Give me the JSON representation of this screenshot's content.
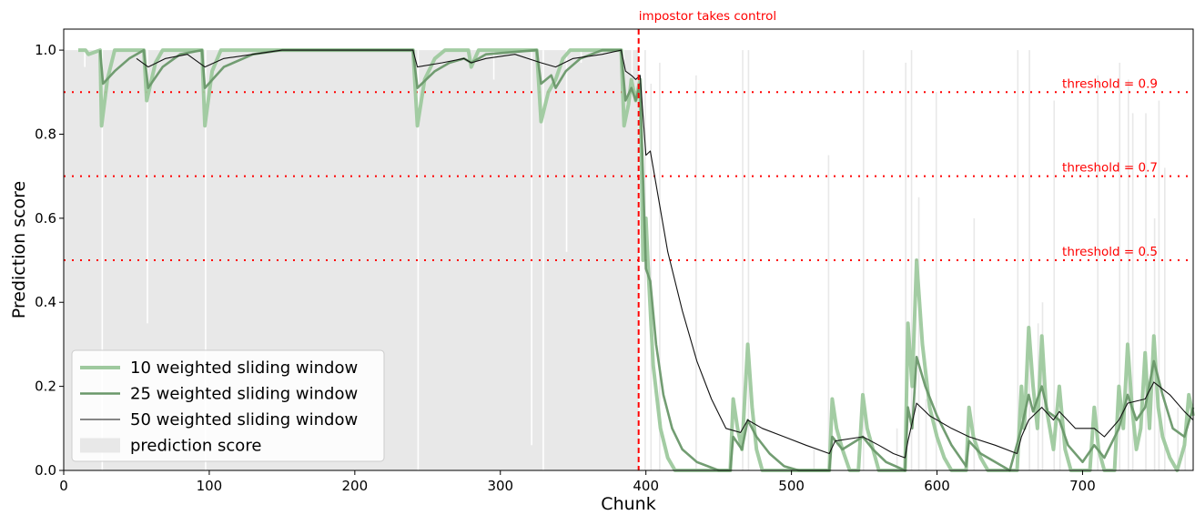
{
  "chart_data": {
    "type": "line",
    "title": "",
    "xlabel": "Chunk",
    "ylabel": "Prediction score",
    "xlim": [
      0,
      776
    ],
    "ylim": [
      0,
      1.05
    ],
    "xticks": [
      0,
      100,
      200,
      300,
      400,
      500,
      600,
      700
    ],
    "yticks": [
      "0.0",
      "0.2",
      "0.4",
      "0.6",
      "0.8",
      "1.0"
    ],
    "grid": false,
    "legend_position": "lower-left",
    "annotations": {
      "impostor_x": 395,
      "impostor_label": "impostor takes control",
      "thresholds": [
        {
          "value": 0.9,
          "label": "threshold = 0.9"
        },
        {
          "value": 0.7,
          "label": "threshold = 0.7"
        },
        {
          "value": 0.5,
          "label": "threshold = 0.5"
        }
      ]
    },
    "series": [
      {
        "name": "10 weighted sliding window",
        "color": "#9ec99e",
        "points": [
          [
            10,
            1.0
          ],
          [
            15,
            1.0
          ],
          [
            17,
            0.99
          ],
          [
            25,
            1.0
          ],
          [
            26,
            0.82
          ],
          [
            30,
            0.93
          ],
          [
            35,
            1.0
          ],
          [
            55,
            1.0
          ],
          [
            57,
            0.88
          ],
          [
            63,
            0.97
          ],
          [
            68,
            1.0
          ],
          [
            95,
            1.0
          ],
          [
            97,
            0.82
          ],
          [
            102,
            0.95
          ],
          [
            108,
            1.0
          ],
          [
            240,
            1.0
          ],
          [
            243,
            0.82
          ],
          [
            248,
            0.93
          ],
          [
            255,
            0.98
          ],
          [
            262,
            1.0
          ],
          [
            278,
            1.0
          ],
          [
            280,
            0.96
          ],
          [
            285,
            1.0
          ],
          [
            325,
            1.0
          ],
          [
            328,
            0.83
          ],
          [
            333,
            0.9
          ],
          [
            338,
            0.93
          ],
          [
            343,
            0.98
          ],
          [
            348,
            1.0
          ],
          [
            383,
            1.0
          ],
          [
            385,
            0.82
          ],
          [
            388,
            0.87
          ],
          [
            390,
            0.93
          ],
          [
            393,
            0.88
          ],
          [
            396,
            0.93
          ],
          [
            398,
            0.5
          ],
          [
            400,
            0.6
          ],
          [
            402,
            0.45
          ],
          [
            405,
            0.25
          ],
          [
            410,
            0.1
          ],
          [
            415,
            0.03
          ],
          [
            420,
            0.0
          ],
          [
            458,
            0.0
          ],
          [
            460,
            0.17
          ],
          [
            463,
            0.1
          ],
          [
            466,
            0.05
          ],
          [
            470,
            0.3
          ],
          [
            473,
            0.15
          ],
          [
            476,
            0.05
          ],
          [
            480,
            0.0
          ],
          [
            512,
            0.0
          ],
          [
            515,
            0.0
          ],
          [
            526,
            0.0
          ],
          [
            528,
            0.17
          ],
          [
            531,
            0.1
          ],
          [
            535,
            0.05
          ],
          [
            540,
            0.0
          ],
          [
            546,
            0.0
          ],
          [
            549,
            0.18
          ],
          [
            552,
            0.1
          ],
          [
            556,
            0.05
          ],
          [
            560,
            0.0
          ],
          [
            578,
            0.0
          ],
          [
            580,
            0.35
          ],
          [
            583,
            0.2
          ],
          [
            586,
            0.5
          ],
          [
            590,
            0.3
          ],
          [
            595,
            0.15
          ],
          [
            600,
            0.08
          ],
          [
            605,
            0.03
          ],
          [
            610,
            0.0
          ],
          [
            620,
            0.0
          ],
          [
            622,
            0.15
          ],
          [
            625,
            0.08
          ],
          [
            630,
            0.03
          ],
          [
            635,
            0.0
          ],
          [
            655,
            0.0
          ],
          [
            658,
            0.2
          ],
          [
            660,
            0.1
          ],
          [
            663,
            0.34
          ],
          [
            666,
            0.2
          ],
          [
            669,
            0.1
          ],
          [
            672,
            0.32
          ],
          [
            675,
            0.15
          ],
          [
            680,
            0.05
          ],
          [
            684,
            0.2
          ],
          [
            688,
            0.05
          ],
          [
            692,
            0.0
          ],
          [
            705,
            0.0
          ],
          [
            708,
            0.15
          ],
          [
            711,
            0.05
          ],
          [
            715,
            0.0
          ],
          [
            722,
            0.0
          ],
          [
            725,
            0.2
          ],
          [
            728,
            0.1
          ],
          [
            731,
            0.3
          ],
          [
            734,
            0.15
          ],
          [
            737,
            0.05
          ],
          [
            740,
            0.1
          ],
          [
            743,
            0.28
          ],
          [
            746,
            0.1
          ],
          [
            749,
            0.32
          ],
          [
            752,
            0.15
          ],
          [
            755,
            0.08
          ],
          [
            760,
            0.03
          ],
          [
            765,
            0.0
          ],
          [
            770,
            0.06
          ],
          [
            773,
            0.18
          ],
          [
            776,
            0.13
          ]
        ]
      },
      {
        "name": "25 weighted sliding window",
        "color": "#6a986a",
        "points": [
          [
            25,
            1.0
          ],
          [
            27,
            0.92
          ],
          [
            35,
            0.95
          ],
          [
            45,
            0.98
          ],
          [
            55,
            1.0
          ],
          [
            58,
            0.91
          ],
          [
            68,
            0.96
          ],
          [
            80,
            0.99
          ],
          [
            95,
            1.0
          ],
          [
            97,
            0.91
          ],
          [
            110,
            0.96
          ],
          [
            130,
            0.99
          ],
          [
            150,
            1.0
          ],
          [
            240,
            1.0
          ],
          [
            243,
            0.91
          ],
          [
            255,
            0.95
          ],
          [
            265,
            0.97
          ],
          [
            275,
            0.98
          ],
          [
            280,
            0.97
          ],
          [
            290,
            0.99
          ],
          [
            325,
            1.0
          ],
          [
            328,
            0.92
          ],
          [
            335,
            0.94
          ],
          [
            338,
            0.91
          ],
          [
            345,
            0.95
          ],
          [
            355,
            0.98
          ],
          [
            370,
            1.0
          ],
          [
            383,
            1.0
          ],
          [
            386,
            0.88
          ],
          [
            390,
            0.91
          ],
          [
            393,
            0.88
          ],
          [
            396,
            0.92
          ],
          [
            398,
            0.7
          ],
          [
            400,
            0.48
          ],
          [
            403,
            0.45
          ],
          [
            407,
            0.3
          ],
          [
            412,
            0.18
          ],
          [
            418,
            0.1
          ],
          [
            425,
            0.05
          ],
          [
            435,
            0.02
          ],
          [
            450,
            0.0
          ],
          [
            458,
            0.0
          ],
          [
            460,
            0.08
          ],
          [
            466,
            0.05
          ],
          [
            470,
            0.12
          ],
          [
            476,
            0.08
          ],
          [
            485,
            0.04
          ],
          [
            495,
            0.01
          ],
          [
            505,
            0.0
          ],
          [
            526,
            0.0
          ],
          [
            528,
            0.08
          ],
          [
            535,
            0.05
          ],
          [
            549,
            0.08
          ],
          [
            556,
            0.05
          ],
          [
            565,
            0.02
          ],
          [
            578,
            0.0
          ],
          [
            580,
            0.15
          ],
          [
            583,
            0.1
          ],
          [
            586,
            0.27
          ],
          [
            592,
            0.2
          ],
          [
            600,
            0.13
          ],
          [
            610,
            0.06
          ],
          [
            620,
            0.01
          ],
          [
            622,
            0.07
          ],
          [
            630,
            0.04
          ],
          [
            640,
            0.02
          ],
          [
            650,
            0.0
          ],
          [
            658,
            0.1
          ],
          [
            663,
            0.18
          ],
          [
            666,
            0.14
          ],
          [
            672,
            0.2
          ],
          [
            676,
            0.14
          ],
          [
            684,
            0.12
          ],
          [
            690,
            0.06
          ],
          [
            700,
            0.02
          ],
          [
            708,
            0.06
          ],
          [
            715,
            0.03
          ],
          [
            725,
            0.1
          ],
          [
            731,
            0.18
          ],
          [
            737,
            0.12
          ],
          [
            743,
            0.15
          ],
          [
            749,
            0.26
          ],
          [
            755,
            0.18
          ],
          [
            762,
            0.1
          ],
          [
            770,
            0.08
          ],
          [
            776,
            0.15
          ]
        ]
      },
      {
        "name": "50 weighted sliding window",
        "color": "#111111",
        "points": [
          [
            50,
            0.98
          ],
          [
            58,
            0.96
          ],
          [
            70,
            0.98
          ],
          [
            85,
            0.99
          ],
          [
            97,
            0.96
          ],
          [
            110,
            0.98
          ],
          [
            130,
            0.99
          ],
          [
            150,
            1.0
          ],
          [
            240,
            1.0
          ],
          [
            243,
            0.96
          ],
          [
            260,
            0.97
          ],
          [
            275,
            0.98
          ],
          [
            280,
            0.97
          ],
          [
            290,
            0.98
          ],
          [
            310,
            0.99
          ],
          [
            328,
            0.97
          ],
          [
            338,
            0.96
          ],
          [
            350,
            0.98
          ],
          [
            370,
            0.99
          ],
          [
            383,
            1.0
          ],
          [
            386,
            0.95
          ],
          [
            390,
            0.94
          ],
          [
            393,
            0.93
          ],
          [
            396,
            0.94
          ],
          [
            400,
            0.75
          ],
          [
            403,
            0.76
          ],
          [
            408,
            0.66
          ],
          [
            415,
            0.52
          ],
          [
            425,
            0.38
          ],
          [
            435,
            0.26
          ],
          [
            445,
            0.17
          ],
          [
            455,
            0.1
          ],
          [
            465,
            0.09
          ],
          [
            470,
            0.12
          ],
          [
            480,
            0.1
          ],
          [
            495,
            0.08
          ],
          [
            510,
            0.06
          ],
          [
            526,
            0.04
          ],
          [
            530,
            0.07
          ],
          [
            549,
            0.08
          ],
          [
            560,
            0.06
          ],
          [
            570,
            0.04
          ],
          [
            578,
            0.03
          ],
          [
            580,
            0.07
          ],
          [
            586,
            0.16
          ],
          [
            595,
            0.13
          ],
          [
            610,
            0.1
          ],
          [
            622,
            0.08
          ],
          [
            640,
            0.06
          ],
          [
            655,
            0.04
          ],
          [
            658,
            0.08
          ],
          [
            663,
            0.12
          ],
          [
            672,
            0.15
          ],
          [
            680,
            0.12
          ],
          [
            684,
            0.14
          ],
          [
            695,
            0.1
          ],
          [
            708,
            0.1
          ],
          [
            715,
            0.08
          ],
          [
            725,
            0.12
          ],
          [
            731,
            0.16
          ],
          [
            743,
            0.17
          ],
          [
            749,
            0.21
          ],
          [
            760,
            0.18
          ],
          [
            770,
            0.14
          ],
          [
            776,
            0.12
          ]
        ]
      },
      {
        "name": "prediction score",
        "color": "#e8e8e8",
        "bars_info": "light gray bars per chunk; ~1.0 before chunk 395 with occasional dips, mostly 0 afterwards with sparse spikes"
      }
    ],
    "prediction_bars": {
      "base_before": 1.0,
      "dips": [
        [
          14,
          0.96
        ],
        [
          26,
          0.0
        ],
        [
          57,
          0.35
        ],
        [
          97,
          0.0
        ],
        [
          243,
          0.0
        ],
        [
          295,
          0.93
        ],
        [
          321,
          0.06
        ],
        [
          329,
          0.0
        ],
        [
          345,
          0.52
        ],
        [
          355,
          0.97
        ],
        [
          384,
          0.9
        ],
        [
          390,
          0.9
        ]
      ],
      "spikes_after": [
        [
          399,
          1.0
        ],
        [
          403,
          0.92
        ],
        [
          409,
          0.97
        ],
        [
          434,
          0.94
        ],
        [
          466,
          1.0
        ],
        [
          470,
          1.0
        ],
        [
          515,
          0.05
        ],
        [
          525,
          0.75
        ],
        [
          549,
          1.0
        ],
        [
          572,
          0.1
        ],
        [
          578,
          0.97
        ],
        [
          582,
          1.0
        ],
        [
          587,
          0.65
        ],
        [
          592,
          0.17
        ],
        [
          599,
          0.9
        ],
        [
          625,
          0.6
        ],
        [
          655,
          1.0
        ],
        [
          663,
          1.0
        ],
        [
          669,
          0.35
        ],
        [
          672,
          0.4
        ],
        [
          680,
          0.88
        ],
        [
          684,
          0.12
        ],
        [
          710,
          0.94
        ],
        [
          725,
          0.97
        ],
        [
          731,
          0.93
        ],
        [
          734,
          0.85
        ],
        [
          743,
          0.85
        ],
        [
          749,
          0.6
        ],
        [
          752,
          0.88
        ],
        [
          756,
          0.72
        ],
        [
          765,
          0.15
        ],
        [
          770,
          0.1
        ]
      ]
    }
  }
}
